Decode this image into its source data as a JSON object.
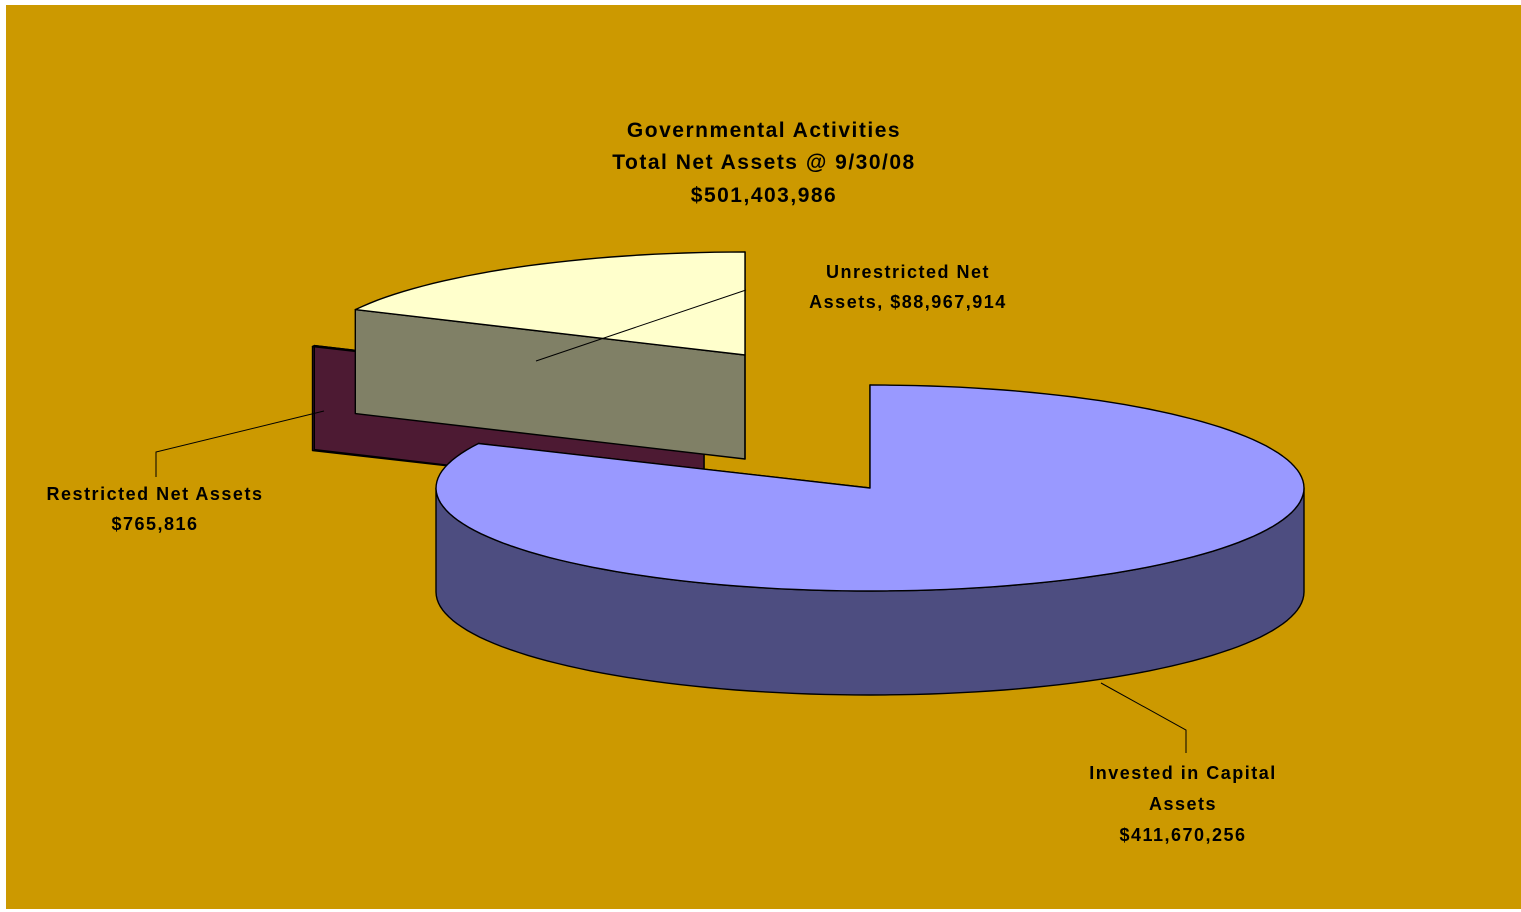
{
  "chart_data": {
    "type": "pie",
    "style": "3d-exploded",
    "title": [
      "Governmental Activities",
      "Total Net Assets @ 9/30/08",
      "$501,403,986"
    ],
    "slices": [
      {
        "label_lines": [
          "Invested in Capital",
          "Assets",
          "$411,670,256"
        ],
        "value": 411670256,
        "top_color": "#9999ff",
        "side_color": "#4d4d80"
      },
      {
        "label_lines": [
          "Restricted Net Assets",
          "$765,816"
        ],
        "value": 765816,
        "top_color": "#661a4d",
        "side_color": "#4d1a33"
      },
      {
        "label_lines": [
          "Unrestricted Net",
          "Assets, $88,967,914"
        ],
        "value": 88967914,
        "top_color": "#ffffcc",
        "side_color": "#808066"
      }
    ],
    "legend": "none",
    "colors": {
      "background": "#cc9900",
      "frame": "#ffffff",
      "outline": "#000000",
      "leader": "#000000"
    }
  }
}
